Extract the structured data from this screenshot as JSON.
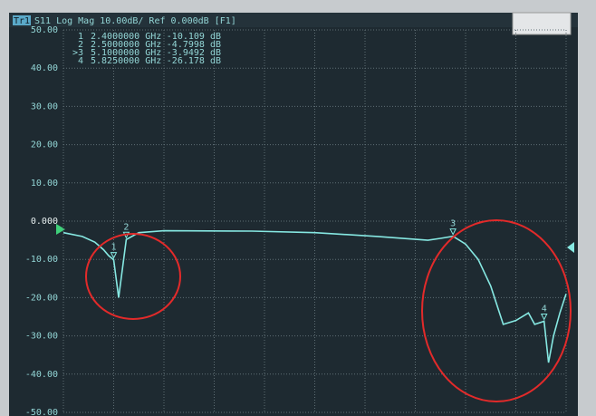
{
  "chart_data": {
    "type": "line",
    "trace_badge": "Tr1",
    "title": "S11 Log Mag 10.00dB/ Ref 0.000dB [F1]",
    "color": "#86e8e2",
    "x": [
      2.0,
      2.15,
      2.25,
      2.32,
      2.36,
      2.4,
      2.44,
      2.5,
      2.6,
      2.8,
      3.5,
      4.0,
      4.5,
      4.9,
      5.0,
      5.1,
      5.2,
      5.3,
      5.4,
      5.5,
      5.6,
      5.7,
      5.75,
      5.825,
      5.86,
      5.9,
      5.95,
      6.0
    ],
    "values": [
      -3.0,
      -4.0,
      -5.5,
      -7.5,
      -9.0,
      -10.109,
      -20.0,
      -4.7998,
      -3.0,
      -2.5,
      -2.6,
      -3.0,
      -4.0,
      -5.0,
      -4.5,
      -3.9492,
      -6.0,
      -10.0,
      -17.0,
      -27.0,
      -26.0,
      -24.0,
      -27.0,
      -26.178,
      -37.0,
      -30.0,
      -24.0,
      -19.0
    ],
    "xlim": [
      2.0,
      6.0
    ],
    "ylim": [
      -50,
      50
    ],
    "yticks": [
      {
        "value": 50,
        "label": "50.00"
      },
      {
        "value": 40,
        "label": "40.00"
      },
      {
        "value": 30,
        "label": "30.00"
      },
      {
        "value": 20,
        "label": "20.00"
      },
      {
        "value": 10,
        "label": "10.00"
      },
      {
        "value": 0,
        "label": "0.000"
      },
      {
        "value": -10,
        "label": "-10.00"
      },
      {
        "value": -20,
        "label": "-20.00"
      },
      {
        "value": -30,
        "label": "-30.00"
      },
      {
        "value": -40,
        "label": "-40.00"
      },
      {
        "value": -50,
        "label": "-50.00"
      }
    ],
    "grid": true,
    "markers": [
      {
        "label": "1",
        "x": 2.4,
        "y": -10.109
      },
      {
        "label": "2",
        "x": 2.5,
        "y": -4.7998
      },
      {
        "label": "3",
        "x": 5.1,
        "y": -3.9492
      },
      {
        "label": "4",
        "x": 5.825,
        "y": -26.178
      }
    ],
    "marker_table": [
      [
        "1",
        "2.4000000 GHz",
        "-10.109 dB"
      ],
      [
        "2",
        "2.5000000 GHz",
        "-4.7998 dB"
      ],
      [
        ">3",
        "5.1000000 GHz",
        "-3.9492 dB"
      ],
      [
        "4",
        "5.8250000 GHz",
        "-26.178 dB"
      ]
    ]
  }
}
